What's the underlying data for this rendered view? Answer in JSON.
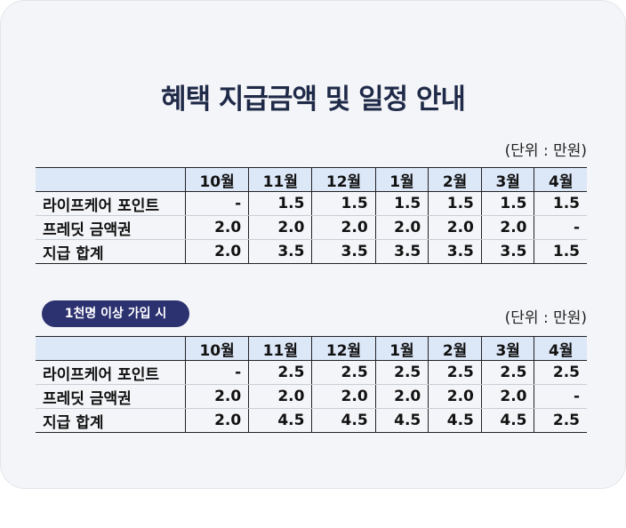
{
  "title": "혜택 지급금액 및 일정 안내",
  "section1": {
    "unit_label": "(단위 : 만원)",
    "columns": [
      "10월",
      "11월",
      "12월",
      "1월",
      "2월",
      "3월",
      "4월"
    ],
    "rows": [
      {
        "label": "라이프케어 포인트",
        "values": [
          "-",
          "1.5",
          "1.5",
          "1.5",
          "1.5",
          "1.5",
          "1.5"
        ]
      },
      {
        "label": "프레딧 금액권",
        "values": [
          "2.0",
          "2.0",
          "2.0",
          "2.0",
          "2.0",
          "2.0",
          "-"
        ]
      },
      {
        "label": "지급 합계",
        "values": [
          "2.0",
          "3.5",
          "3.5",
          "3.5",
          "3.5",
          "3.5",
          "1.5"
        ]
      }
    ]
  },
  "section2": {
    "badge": "1천명 이상 가입 시",
    "unit_label": "(단위 : 만원)",
    "columns": [
      "10월",
      "11월",
      "12월",
      "1월",
      "2월",
      "3월",
      "4월"
    ],
    "rows": [
      {
        "label": "라이프케어 포인트",
        "values": [
          "-",
          "2.5",
          "2.5",
          "2.5",
          "2.5",
          "2.5",
          "2.5"
        ]
      },
      {
        "label": "프레딧 금액권",
        "values": [
          "2.0",
          "2.0",
          "2.0",
          "2.0",
          "2.0",
          "2.0",
          "-"
        ]
      },
      {
        "label": "지급 합계",
        "values": [
          "2.0",
          "4.5",
          "4.5",
          "4.5",
          "4.5",
          "4.5",
          "2.5"
        ]
      }
    ]
  }
}
